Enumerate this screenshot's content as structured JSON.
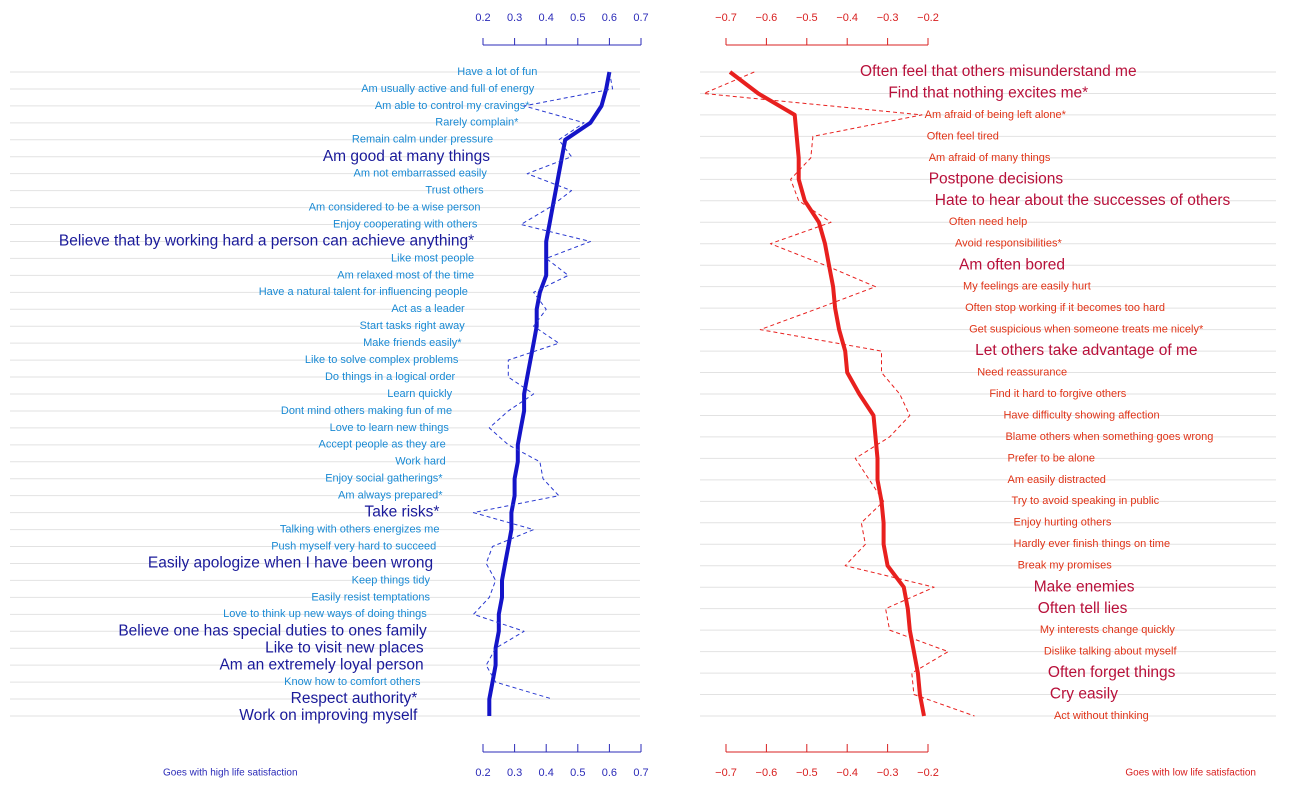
{
  "chart_data": [
    {
      "type": "line",
      "categories": [
        "Have a lot of fun",
        "Am usually active and full of energy",
        "Am able to control my cravings*",
        "Rarely complain*",
        "Remain calm under pressure",
        "Am good at many things",
        "Am not embarrassed easily",
        "Trust others",
        "Am considered to be a wise person",
        "Enjoy cooperating with others",
        "Believe that by working hard a person can achieve anything*",
        "Like most people",
        "Am relaxed most of the time",
        "Have a natural talent for influencing people",
        "Act as a leader",
        "Start tasks right away",
        "Make friends easily*",
        "Like to solve complex problems",
        "Do things in a logical order",
        "Learn quickly",
        "Dont mind others making fun of me",
        "Love to learn new things",
        "Accept people as they are",
        "Work hard",
        "Enjoy social gatherings*",
        "Am always prepared*",
        "Take risks*",
        "Talking with others energizes me",
        "Push myself very hard to succeed",
        "Easily apologize when I have been wrong",
        "Keep things tidy",
        "Easily resist temptations",
        "Love to think up new ways of doing things",
        "Believe one has special duties to ones family",
        "Like to visit new places",
        "Am an extremely loyal person",
        "Know how to comfort others",
        "Respect authority*",
        "Work on improving myself"
      ],
      "series": [
        {
          "color": "#1414c8",
          "line_style": "solid",
          "values": [
            0.6,
            0.59,
            0.575,
            0.54,
            0.46,
            0.45,
            0.44,
            0.43,
            0.42,
            0.41,
            0.4,
            0.4,
            0.4,
            0.38,
            0.37,
            0.37,
            0.36,
            0.35,
            0.34,
            0.33,
            0.33,
            0.32,
            0.31,
            0.31,
            0.3,
            0.3,
            0.29,
            0.29,
            0.28,
            0.27,
            0.26,
            0.26,
            0.25,
            0.25,
            0.24,
            0.24,
            0.23,
            0.22,
            0.22
          ]
        },
        {
          "color": "#2838d0",
          "line_style": "dashed",
          "values": [
            0.6,
            0.61,
            0.33,
            0.52,
            0.44,
            0.48,
            0.34,
            0.48,
            0.41,
            0.32,
            0.54,
            0.4,
            0.47,
            0.36,
            0.4,
            0.36,
            0.44,
            0.28,
            0.28,
            0.36,
            0.28,
            0.22,
            0.28,
            0.38,
            0.39,
            0.44,
            0.17,
            0.36,
            0.23,
            0.21,
            0.24,
            0.22,
            0.17,
            0.33,
            0.24,
            0.21,
            0.24,
            0.42,
            null
          ]
        }
      ],
      "xlim": [
        0.2,
        0.7
      ],
      "xticks": [
        0.2,
        0.3,
        0.4,
        0.5,
        0.6,
        0.7
      ],
      "note": "Goes with high life satisfaction",
      "grid": true
    },
    {
      "type": "line",
      "categories": [
        "Often feel that others misunderstand me",
        "Find that nothing excites me*",
        "Am afraid of being left alone*",
        "Often feel tired",
        "Am afraid of many things",
        "Postpone decisions",
        "Hate to hear about the successes of others",
        "Often need help",
        "Avoid responsibilities*",
        "Am often bored",
        "My feelings are easily hurt",
        "Often stop working if it becomes too hard",
        "Get suspicious when someone treats me nicely*",
        "Let others take advantage of me",
        "Need reassurance",
        "Find it hard to forgive others",
        "Have difficulty showing affection",
        "Blame others when something goes wrong",
        "Prefer to be alone",
        "Am easily distracted",
        "Try to avoid speaking in public",
        "Enjoy hurting others",
        "Hardly ever finish things on time",
        "Break my promises",
        "Make enemies",
        "Often tell lies",
        "My interests change quickly",
        "Dislike talking about myself",
        "Often forget things",
        "Cry easily",
        "Act without thinking"
      ],
      "series": [
        {
          "color": "#e8201e",
          "line_style": "solid",
          "values": [
            -0.69,
            -0.62,
            -0.53,
            -0.525,
            -0.52,
            -0.52,
            -0.505,
            -0.47,
            -0.455,
            -0.445,
            -0.435,
            -0.43,
            -0.42,
            -0.405,
            -0.4,
            -0.37,
            -0.335,
            -0.33,
            -0.325,
            -0.325,
            -0.315,
            -0.31,
            -0.31,
            -0.3,
            -0.26,
            -0.25,
            -0.245,
            -0.235,
            -0.225,
            -0.22,
            -0.21
          ]
        },
        {
          "color": "#e8201e",
          "line_style": "dashed",
          "values": [
            -0.63,
            -0.755,
            -0.215,
            -0.485,
            -0.49,
            -0.54,
            -0.52,
            -0.44,
            -0.59,
            -0.455,
            -0.33,
            -0.47,
            -0.615,
            -0.315,
            -0.315,
            -0.27,
            -0.245,
            -0.295,
            -0.38,
            -0.345,
            -0.31,
            -0.365,
            -0.355,
            -0.405,
            -0.185,
            -0.305,
            -0.295,
            -0.15,
            -0.24,
            -0.235,
            -0.085
          ]
        }
      ],
      "xlim": [
        -0.7,
        -0.2
      ],
      "xticks": [
        {
          "value": -0.7,
          "label": "−0.7"
        },
        {
          "value": -0.6,
          "label": "−0.6"
        },
        {
          "value": -0.5,
          "label": "−0.5"
        },
        {
          "value": -0.4,
          "label": "−0.4"
        },
        {
          "value": -0.3,
          "label": "−0.3"
        },
        {
          "value": -0.2,
          "label": "−0.2"
        }
      ],
      "note": "Goes with low life satisfaction",
      "grid": true
    }
  ]
}
